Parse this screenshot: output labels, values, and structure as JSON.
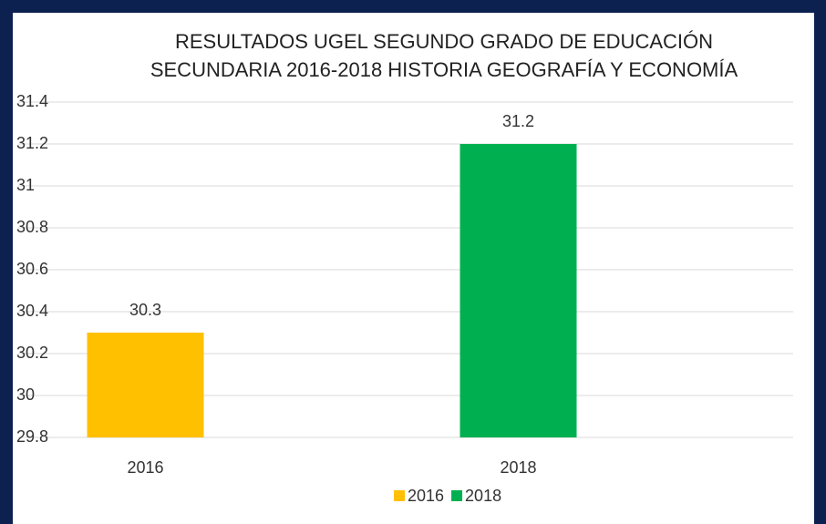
{
  "chart_data": {
    "type": "bar",
    "title": "RESULTADOS UGEL SEGUNDO GRADO DE EDUCACIÓN SECUNDARIA 2016-2018 HISTORIA GEOGRAFÍA Y ECONOMÍA",
    "categories": [
      "2016",
      "2018"
    ],
    "series": [
      {
        "name": "2016",
        "color": "#FFC000",
        "values": [
          30.3,
          null
        ]
      },
      {
        "name": "2018",
        "color": "#00B050",
        "values": [
          null,
          31.2
        ]
      }
    ],
    "ylim": [
      29.8,
      31.4
    ],
    "yticks": [
      29.8,
      30,
      30.2,
      30.4,
      30.6,
      30.8,
      31,
      31.2,
      31.4
    ],
    "grid": true,
    "legend": "bottom"
  }
}
